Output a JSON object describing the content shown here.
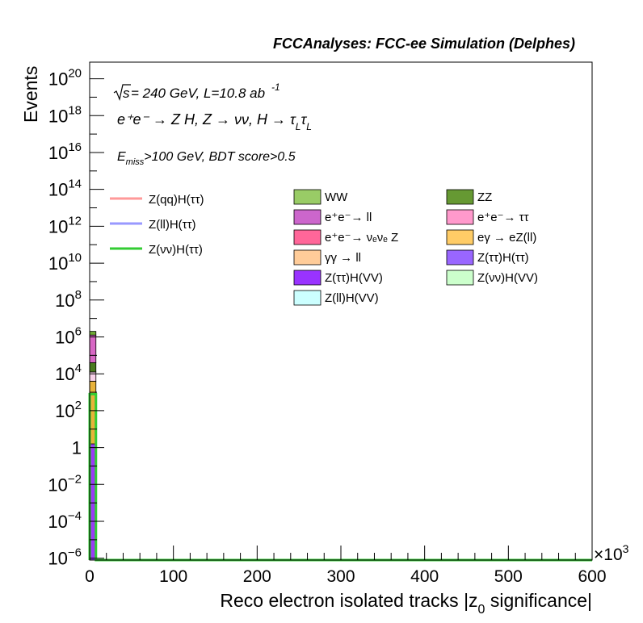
{
  "chart_data": {
    "type": "bar",
    "title": "FCCAnalyses: FCC-ee Simulation (Delphes)",
    "annotations": {
      "energy_sqrt": "s",
      "energy_rest": " = 240 GeV, L=10.8 ab",
      "energy_exp": "-1",
      "process": "e⁺e⁻ → Z H, Z → νν, H → τ",
      "process_sub1": "L",
      "process_tau2": "τ",
      "process_sub2": "L",
      "cuts_e": "E",
      "cuts_sub": "miss",
      "cuts_rest": ">100 GeV, BDT score>0.5"
    },
    "xlabel_main": "Reco electron isolated tracks |z",
    "xlabel_sub": "0",
    "xlabel_end": " significance|",
    "ylabel": "Events",
    "x_multiplier_prefix": "×10",
    "x_multiplier_exp": "3",
    "x_ticks": [
      "0",
      "100",
      "200",
      "300",
      "400",
      "500",
      "600"
    ],
    "y_ticks": [
      {
        "exp": -6,
        "base": "10",
        "sup": "−6"
      },
      {
        "exp": -4,
        "base": "10",
        "sup": "−4"
      },
      {
        "exp": -2,
        "base": "10",
        "sup": "−2"
      },
      {
        "exp": 0,
        "base": "1",
        "sup": ""
      },
      {
        "exp": 2,
        "base": "10",
        "sup": "2"
      },
      {
        "exp": 4,
        "base": "10",
        "sup": "4"
      },
      {
        "exp": 6,
        "base": "10",
        "sup": "6"
      },
      {
        "exp": 8,
        "base": "10",
        "sup": "8"
      },
      {
        "exp": 10,
        "base": "10",
        "sup": "10"
      },
      {
        "exp": 12,
        "base": "10",
        "sup": "12"
      },
      {
        "exp": 14,
        "base": "10",
        "sup": "14"
      },
      {
        "exp": 16,
        "base": "10",
        "sup": "16"
      },
      {
        "exp": 18,
        "base": "10",
        "sup": "18"
      },
      {
        "exp": 20,
        "base": "10",
        "sup": "20"
      }
    ],
    "xlim": [
      0,
      600
    ],
    "ylim_log10": [
      -6.1,
      20.9
    ],
    "ylog": true,
    "stacked_bins": [
      {
        "x0": 0,
        "x1": 7.5,
        "layers": [
          {
            "color": "#9a3cf5",
            "low": -6.1,
            "high": 0.2
          },
          {
            "color": "#e8b23a",
            "low": 0.2,
            "high": 3.6
          },
          {
            "color": "#f7d0e8",
            "low": 3.6,
            "high": 4.1
          },
          {
            "color": "#4a7a1f",
            "low": 4.1,
            "high": 4.6
          },
          {
            "color": "#d767c4",
            "low": 4.6,
            "high": 6.1
          },
          {
            "color": "#6fa836",
            "low": 6.1,
            "high": 6.3
          }
        ]
      }
    ],
    "signal_lines": [
      {
        "name": "Z(νν)H(ττ)",
        "color": "#33cc33",
        "bins": [
          {
            "x0": 0,
            "x1": 7.5,
            "log10y": 2.9
          },
          {
            "x0": 7.5,
            "x1": 600,
            "log10y": -6.1
          }
        ]
      }
    ],
    "legend_signals": [
      {
        "name": "Z(qq)H(ττ)",
        "color": "#ff9999"
      },
      {
        "name": "Z(ll)H(ττ)",
        "color": "#9999ff"
      },
      {
        "name": "Z(νν)H(ττ)",
        "color": "#33cc33"
      }
    ],
    "legend_backgrounds": [
      {
        "name": "WW",
        "color": "#99cc66"
      },
      {
        "name": "ZZ",
        "color": "#669933"
      },
      {
        "name": "e⁺e⁻→ ll",
        "color": "#cc66cc"
      },
      {
        "name": "e⁺e⁻→ ττ",
        "color": "#ff99cc"
      },
      {
        "name": "e⁺e⁻→ νₑνₑ Z",
        "color": "#ff6699"
      },
      {
        "name": "eγ → eZ(ll)",
        "color": "#ffcc66"
      },
      {
        "name": "γγ → ll",
        "color": "#ffcc99"
      },
      {
        "name": "Z(ττ)H(ττ)",
        "color": "#9966ff"
      },
      {
        "name": "Z(ττ)H(VV)",
        "color": "#9933ff"
      },
      {
        "name": "Z(νν)H(VV)",
        "color": "#ccffcc"
      },
      {
        "name": "Z(ll)H(VV)",
        "color": "#ccffff"
      }
    ]
  }
}
